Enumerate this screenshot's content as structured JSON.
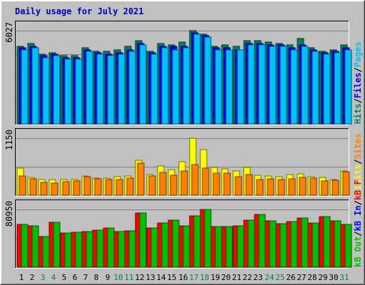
{
  "title": "Daily usage for July 2021",
  "colors": {
    "page_bg": "#c0c0c0",
    "plot_bg": "#c0c0c0",
    "gridline": "#808080",
    "title": "#0000c0",
    "hits": "#00805c",
    "files": "#0000ff",
    "pages": "#00c0ff",
    "visits": "#ffff00",
    "sites": "#ff8000",
    "kb_in": "#00c000",
    "kb_out": "#00c000",
    "kb_f": "#ff0000",
    "weekday_label": "#000000",
    "weekend_label": "#00805c"
  },
  "legends": {
    "top": [
      {
        "text": "Hits",
        "color": "#00805c"
      },
      {
        "text": "/",
        "color": "#000000"
      },
      {
        "text": "Files",
        "color": "#0000ff"
      },
      {
        "text": "/",
        "color": "#000000"
      },
      {
        "text": "Pages",
        "color": "#00c0ff"
      }
    ],
    "middle": [
      {
        "text": "Visits",
        "color": "#ffff00"
      },
      {
        "text": "/",
        "color": "#000000"
      },
      {
        "text": "Sites",
        "color": "#ff8000"
      }
    ],
    "bottom": [
      {
        "text": "kB Out",
        "color": "#00c000"
      },
      {
        "text": "/",
        "color": "#000000"
      },
      {
        "text": "kB In",
        "color": "#0000ff"
      },
      {
        "text": "/",
        "color": "#000000"
      },
      {
        "text": "kB F",
        "color": "#ff0000"
      }
    ]
  },
  "chart_data": {
    "type": "bar",
    "title": "Daily usage for July 2021",
    "categories": [
      "1",
      "2",
      "3",
      "4",
      "5",
      "6",
      "7",
      "8",
      "9",
      "10",
      "11",
      "12",
      "13",
      "14",
      "15",
      "16",
      "17",
      "18",
      "19",
      "20",
      "21",
      "22",
      "23",
      "24",
      "25",
      "26",
      "27",
      "28",
      "29",
      "30",
      "31"
    ],
    "weekend_days": [
      "3",
      "4",
      "10",
      "11",
      "17",
      "18",
      "24",
      "25",
      "31"
    ],
    "panels": [
      {
        "name": "hits-files-pages",
        "max_label": "6027",
        "ylim": [
          0,
          6027
        ],
        "series": [
          {
            "name": "Hits",
            "color": "#00805c",
            "values": [
              5000,
              5200,
              4500,
              4600,
              4400,
              4400,
              4900,
              4700,
              4700,
              4800,
              5000,
              5400,
              4700,
              5200,
              5100,
              5300,
              6027,
              5800,
              5000,
              5100,
              5000,
              5400,
              5400,
              5300,
              5200,
              5100,
              5500,
              4900,
              4700,
              4800,
              5100
            ]
          },
          {
            "name": "Files",
            "color": "#0000ff",
            "values": [
              4900,
              5000,
              4400,
              4500,
              4300,
              4300,
              4800,
              4600,
              4500,
              4600,
              4800,
              5200,
              4600,
              5000,
              5000,
              5000,
              5900,
              5700,
              4900,
              4900,
              4800,
              5200,
              5200,
              5100,
              5100,
              4900,
              5100,
              4800,
              4600,
              4700,
              4900
            ]
          },
          {
            "name": "Pages",
            "color": "#00c0ff",
            "values": [
              4800,
              4900,
              4300,
              4400,
              4200,
              4200,
              4700,
              4500,
              4400,
              4500,
              4700,
              5100,
              4500,
              4900,
              4800,
              4900,
              5800,
              5600,
              4800,
              4800,
              4800,
              5100,
              5100,
              5000,
              5000,
              4800,
              5000,
              4700,
              4500,
              4600,
              4800
            ]
          }
        ]
      },
      {
        "name": "visits-sites",
        "max_label": "1150",
        "ylim": [
          0,
          1150
        ],
        "series": [
          {
            "name": "Visits",
            "color": "#ffff00",
            "values": [
              540,
              360,
              310,
              320,
              320,
              310,
              390,
              350,
              350,
              370,
              390,
              710,
              420,
              590,
              520,
              670,
              1150,
              920,
              560,
              530,
              490,
              560,
              400,
              390,
              380,
              420,
              430,
              380,
              360,
              310,
              490
            ]
          },
          {
            "name": "Sites",
            "color": "#ff8000",
            "values": [
              390,
              330,
              260,
              250,
              270,
              290,
              370,
              330,
              310,
              320,
              340,
              650,
              390,
              460,
              400,
              490,
              620,
              540,
              450,
              440,
              380,
              420,
              320,
              330,
              320,
              330,
              360,
              340,
              290,
              300,
              470
            ]
          }
        ]
      },
      {
        "name": "kb-out-in-f",
        "max_label": "80950",
        "ylim": [
          0,
          80950
        ],
        "series": [
          {
            "name": "kB F",
            "color": "#ff0000",
            "values": [
              60000,
              57500,
              42500,
              62500,
              48000,
              49000,
              50000,
              52000,
              55000,
              50000,
              51000,
              76000,
              55000,
              61500,
              66000,
              57500,
              71500,
              80950,
              56500,
              56500,
              57500,
              66000,
              74000,
              64500,
              60500,
              64000,
              68500,
              62000,
              71000,
              64500,
              59500
            ]
          },
          {
            "name": "kB In",
            "color": "#0000ff",
            "values": [
              200,
              200,
              200,
              200,
              200,
              200,
              200,
              200,
              200,
              200,
              200,
              200,
              200,
              200,
              200,
              200,
              200,
              200,
              200,
              200,
              200,
              200,
              200,
              200,
              200,
              200,
              200,
              200,
              200,
              200,
              200
            ]
          },
          {
            "name": "kB Out",
            "color": "#00c000",
            "values": [
              60000,
              57500,
              42500,
              62500,
              48000,
              49000,
              50000,
              52000,
              55000,
              50000,
              51000,
              76000,
              55000,
              61500,
              66000,
              57500,
              71500,
              80950,
              56500,
              56500,
              57500,
              66000,
              74000,
              64500,
              60500,
              64000,
              68500,
              62000,
              71000,
              64500,
              59500
            ]
          }
        ]
      }
    ]
  }
}
